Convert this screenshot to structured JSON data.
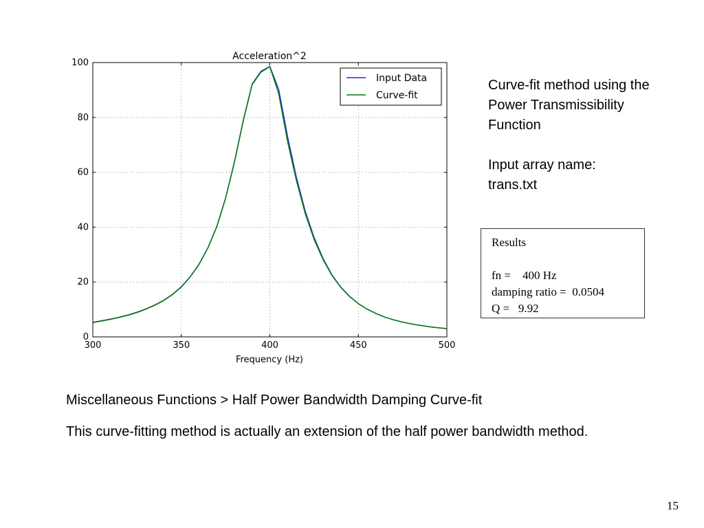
{
  "chart_data": {
    "type": "line",
    "title": "Acceleration^2",
    "xlabel": "Frequency (Hz)",
    "ylabel": "",
    "xlim": [
      300,
      500
    ],
    "ylim": [
      0,
      100
    ],
    "xticks": [
      300,
      350,
      400,
      450,
      500
    ],
    "yticks": [
      0,
      20,
      40,
      60,
      80,
      100
    ],
    "grid": true,
    "legend_position": "top-right",
    "x": [
      300,
      305,
      310,
      315,
      320,
      325,
      330,
      335,
      340,
      345,
      350,
      355,
      360,
      365,
      370,
      375,
      380,
      385,
      390,
      395,
      400,
      405,
      410,
      415,
      420,
      425,
      430,
      435,
      440,
      445,
      450,
      455,
      460,
      465,
      470,
      475,
      480,
      485,
      490,
      495,
      500
    ],
    "series": [
      {
        "name": "Input Data",
        "color": "#1f2fd0",
        "values": [
          5.3,
          5.9,
          6.5,
          7.2,
          8.0,
          9.0,
          10.2,
          11.6,
          13.3,
          15.5,
          18.3,
          21.9,
          26.5,
          32.5,
          40.2,
          50.6,
          63.8,
          79.0,
          92.2,
          96.8,
          98.6,
          90.2,
          73.0,
          58.2,
          45.8,
          36.2,
          28.6,
          22.7,
          18.2,
          14.8,
          12.1,
          10.1,
          8.5,
          7.2,
          6.2,
          5.4,
          4.7,
          4.2,
          3.7,
          3.3,
          3.0
        ]
      },
      {
        "name": "Curve-fit",
        "color": "#0a7a0a",
        "values": [
          5.2,
          5.8,
          6.4,
          7.1,
          7.9,
          8.9,
          10.1,
          11.5,
          13.2,
          15.4,
          18.2,
          21.8,
          26.4,
          32.4,
          40.1,
          50.5,
          63.6,
          78.8,
          92.0,
          96.5,
          98.5,
          88.6,
          71.2,
          57.0,
          44.9,
          35.5,
          28.2,
          22.5,
          18.1,
          14.7,
          12.1,
          10.1,
          8.5,
          7.2,
          6.2,
          5.4,
          4.7,
          4.2,
          3.7,
          3.3,
          3.0
        ]
      }
    ]
  },
  "side": {
    "line1": "Curve-fit method using the",
    "line2": "Power Transmissibility",
    "line3": "Function",
    "line4": "Input array name:",
    "line5": "trans.txt"
  },
  "results": {
    "title": "Results",
    "fn": "fn =    400 Hz",
    "damping": "damping ratio =  0.0504",
    "q": "Q =   9.92"
  },
  "footer": {
    "path": "Miscellaneous Functions > Half Power Bandwidth Damping Curve-fit",
    "description": "This curve-fitting method is actually an extension of the half power bandwidth method.",
    "page_number": "15"
  }
}
